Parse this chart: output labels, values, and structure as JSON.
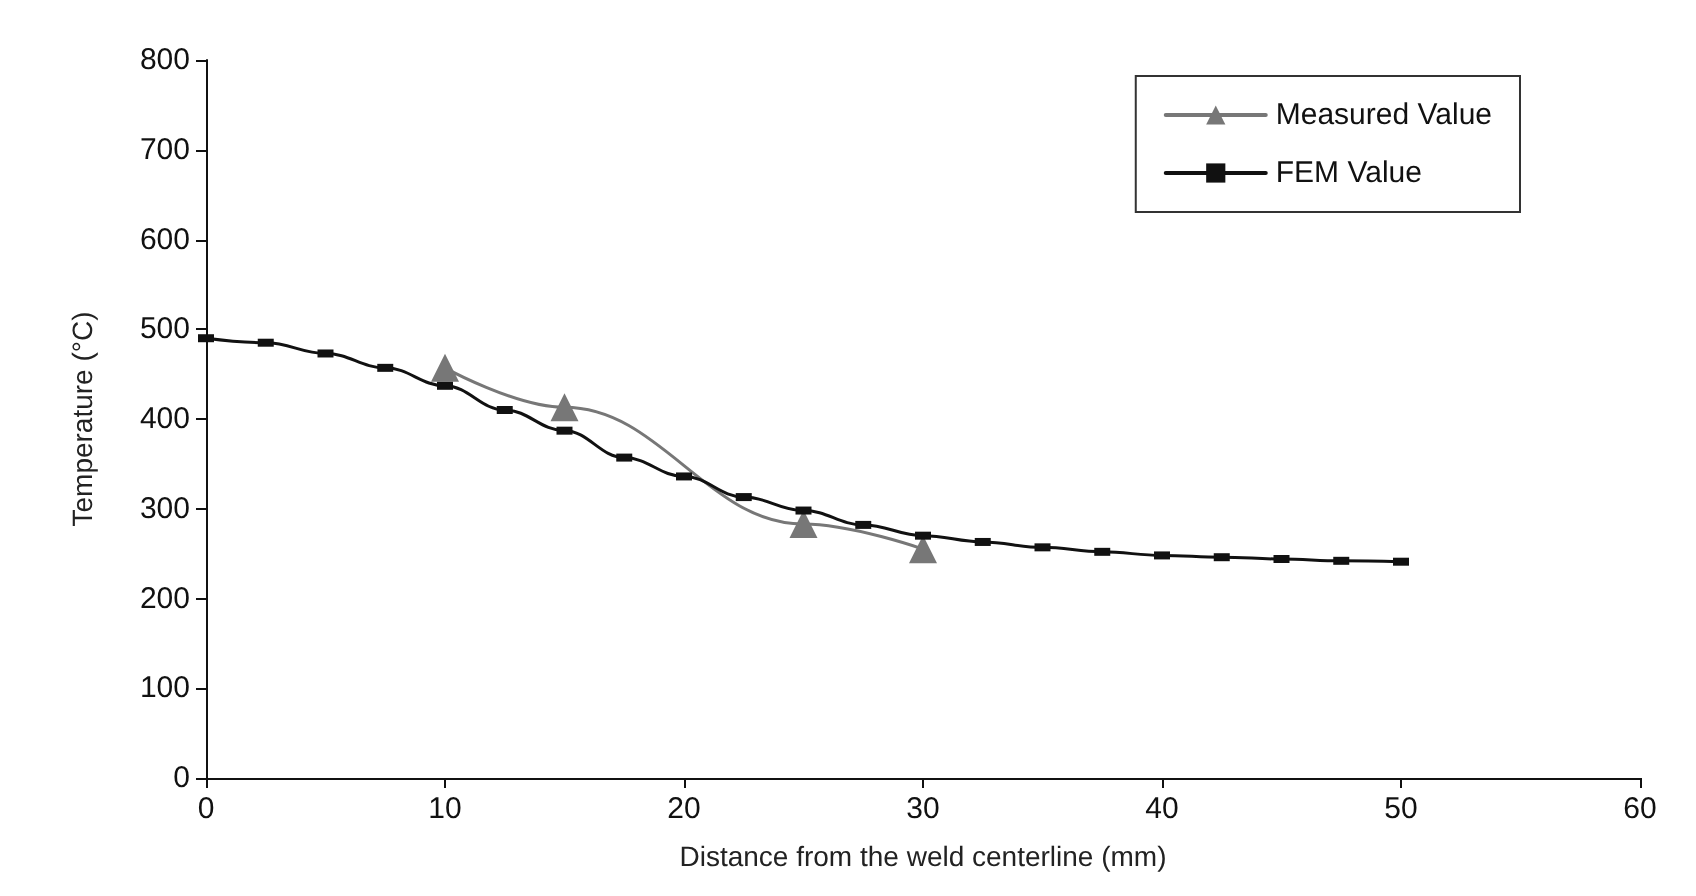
{
  "chart_data": {
    "type": "line",
    "xlabel": "Distance from the weld centerline (mm)",
    "ylabel": "Temperature (°C)",
    "xlim": [
      0,
      60
    ],
    "xticks": [
      0,
      10,
      20,
      30,
      40,
      50,
      60
    ],
    "ylim": [
      0,
      800
    ],
    "yticks": [
      0,
      100,
      200,
      300,
      400,
      500,
      600,
      700,
      800
    ],
    "grid": false,
    "legend": "top right",
    "line_style": "solid",
    "series": [
      {
        "name": "Measured Value",
        "color": "#777777",
        "marker": "triangle",
        "x": [
          10,
          15,
          25,
          30
        ],
        "values": [
          457,
          413,
          283,
          255
        ]
      },
      {
        "name": "FEM Value",
        "color": "#111111",
        "marker": "square",
        "x": [
          0,
          2.5,
          5,
          7.5,
          10,
          12.5,
          15,
          17.5,
          20,
          22.5,
          25,
          27.5,
          30,
          32.5,
          35,
          37.5,
          40,
          42.5,
          45,
          47.5,
          50
        ],
        "values": [
          490,
          485,
          473,
          457,
          437,
          410,
          387,
          357,
          336,
          313,
          298,
          282,
          270,
          263,
          257,
          252,
          248,
          246,
          244,
          242,
          241
        ]
      }
    ]
  }
}
